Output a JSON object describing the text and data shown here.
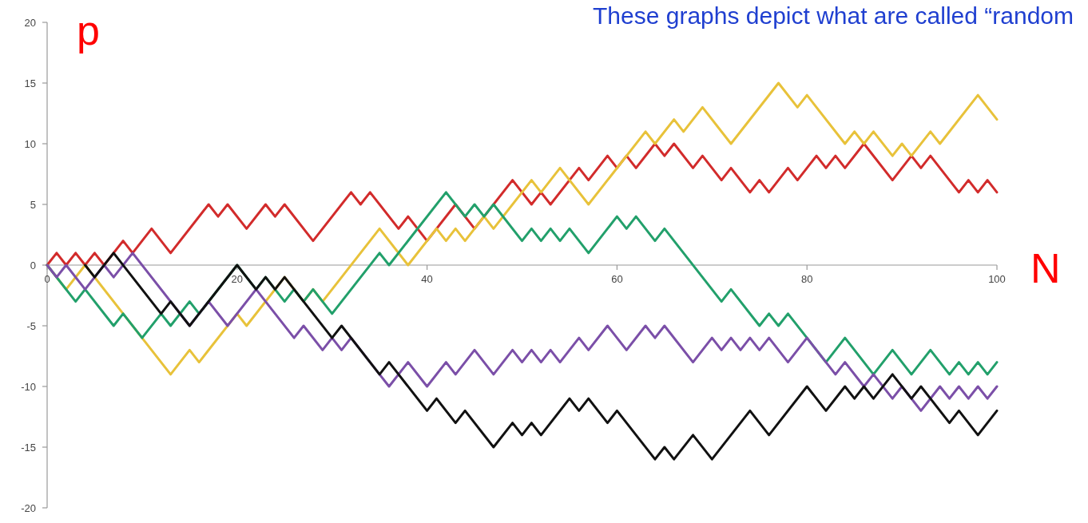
{
  "chart_data": {
    "type": "line",
    "title": "These graphs depict what are called “random",
    "xlabel": "N",
    "ylabel": "p",
    "xlim": [
      0,
      100
    ],
    "ylim": [
      -20,
      20
    ],
    "xticks": [
      0,
      20,
      40,
      60,
      80,
      100
    ],
    "yticks": [
      -20,
      -15,
      -10,
      -5,
      0,
      5,
      10,
      15,
      20
    ],
    "grid": false,
    "marker": "none",
    "line_style": "solid",
    "series": [
      {
        "color": "#d22b2b",
        "x": [
          0,
          1,
          2,
          3,
          4,
          5,
          6,
          8,
          9,
          11,
          13,
          17,
          18,
          19,
          21,
          23,
          24,
          25,
          28,
          32,
          33,
          34,
          37,
          38,
          40,
          43,
          45,
          49,
          51,
          52,
          53,
          56,
          57,
          59,
          60,
          61,
          62,
          64,
          65,
          66,
          68,
          69,
          71,
          72,
          74,
          75,
          76,
          78,
          79,
          81,
          82,
          83,
          84,
          86,
          89,
          91,
          92,
          93,
          96,
          97,
          98,
          99,
          100
        ],
        "values": [
          0,
          1,
          0,
          1,
          0,
          1,
          0,
          2,
          1,
          3,
          1,
          5,
          4,
          5,
          3,
          5,
          4,
          5,
          2,
          6,
          5,
          6,
          3,
          4,
          2,
          5,
          3,
          7,
          5,
          6,
          5,
          8,
          7,
          9,
          8,
          9,
          8,
          10,
          9,
          10,
          8,
          9,
          7,
          8,
          6,
          7,
          6,
          8,
          7,
          9,
          8,
          9,
          8,
          10,
          7,
          9,
          8,
          9,
          6,
          7,
          6,
          7,
          6
        ]
      },
      {
        "color": "#e8c23a",
        "x": [
          0,
          2,
          4,
          8,
          13,
          15,
          16,
          20,
          21,
          25,
          27,
          28,
          29,
          35,
          38,
          41,
          42,
          43,
          44,
          46,
          47,
          51,
          52,
          54,
          57,
          63,
          64,
          66,
          67,
          69,
          72,
          77,
          79,
          80,
          84,
          85,
          86,
          87,
          89,
          90,
          91,
          93,
          94,
          98,
          100
        ],
        "values": [
          0,
          -2,
          0,
          -4,
          -9,
          -7,
          -8,
          -4,
          -5,
          -1,
          -3,
          -2,
          -3,
          3,
          0,
          3,
          2,
          3,
          2,
          4,
          3,
          7,
          6,
          8,
          5,
          11,
          10,
          12,
          11,
          13,
          10,
          15,
          13,
          14,
          10,
          11,
          10,
          11,
          9,
          10,
          9,
          11,
          10,
          14,
          12
        ]
      },
      {
        "color": "#22a06b",
        "x": [
          0,
          3,
          4,
          7,
          8,
          10,
          12,
          13,
          15,
          16,
          20,
          22,
          23,
          25,
          26,
          27,
          28,
          30,
          35,
          36,
          42,
          44,
          45,
          46,
          47,
          50,
          51,
          52,
          53,
          54,
          55,
          57,
          60,
          61,
          62,
          64,
          65,
          71,
          72,
          75,
          76,
          77,
          78,
          82,
          84,
          87,
          89,
          91,
          93,
          95,
          96,
          97,
          98,
          99,
          100
        ],
        "values": [
          0,
          -3,
          -2,
          -5,
          -4,
          -6,
          -4,
          -5,
          -3,
          -4,
          0,
          -2,
          -1,
          -3,
          -2,
          -3,
          -2,
          -4,
          1,
          0,
          6,
          4,
          5,
          4,
          5,
          2,
          3,
          2,
          3,
          2,
          3,
          1,
          4,
          3,
          4,
          2,
          3,
          -3,
          -2,
          -5,
          -4,
          -5,
          -4,
          -8,
          -6,
          -9,
          -7,
          -9,
          -7,
          -9,
          -8,
          -9,
          -8,
          -9,
          -8
        ]
      },
      {
        "color": "#7b4fa8",
        "x": [
          0,
          1,
          2,
          4,
          6,
          7,
          9,
          15,
          17,
          19,
          22,
          23,
          26,
          27,
          29,
          30,
          31,
          32,
          35,
          36,
          38,
          40,
          42,
          43,
          45,
          47,
          49,
          50,
          51,
          52,
          53,
          54,
          56,
          57,
          59,
          61,
          63,
          64,
          65,
          68,
          70,
          71,
          72,
          73,
          74,
          75,
          76,
          78,
          80,
          83,
          84,
          86,
          87,
          89,
          90,
          92,
          94,
          95,
          96,
          97,
          98,
          99,
          100
        ],
        "values": [
          0,
          -1,
          0,
          -2,
          0,
          -1,
          1,
          -5,
          -3,
          -5,
          -2,
          -3,
          -6,
          -5,
          -7,
          -6,
          -7,
          -6,
          -9,
          -10,
          -8,
          -10,
          -8,
          -9,
          -7,
          -9,
          -7,
          -8,
          -7,
          -8,
          -7,
          -8,
          -6,
          -7,
          -5,
          -7,
          -5,
          -6,
          -5,
          -8,
          -6,
          -7,
          -6,
          -7,
          -6,
          -7,
          -6,
          -8,
          -6,
          -9,
          -8,
          -10,
          -9,
          -11,
          -10,
          -12,
          -10,
          -11,
          -10,
          -11,
          -10,
          -11,
          -10
        ]
      },
      {
        "color": "#111111",
        "x": [
          4,
          5,
          7,
          12,
          13,
          15,
          20,
          22,
          23,
          24,
          25,
          27,
          30,
          31,
          35,
          36,
          40,
          41,
          43,
          44,
          47,
          49,
          50,
          51,
          52,
          55,
          56,
          57,
          59,
          60,
          64,
          65,
          66,
          68,
          70,
          74,
          76,
          80,
          82,
          84,
          85,
          86,
          87,
          89,
          91,
          92,
          93,
          95,
          96,
          98,
          100
        ],
        "values": [
          0,
          -1,
          1,
          -4,
          -3,
          -5,
          0,
          -2,
          -1,
          -2,
          -1,
          -3,
          -6,
          -5,
          -9,
          -8,
          -12,
          -11,
          -13,
          -12,
          -15,
          -13,
          -14,
          -13,
          -14,
          -11,
          -12,
          -11,
          -13,
          -12,
          -16,
          -15,
          -16,
          -14,
          -16,
          -12,
          -14,
          -10,
          -12,
          -10,
          -11,
          -10,
          -11,
          -9,
          -11,
          -10,
          -11,
          -13,
          -12,
          -14,
          -12
        ]
      }
    ]
  }
}
